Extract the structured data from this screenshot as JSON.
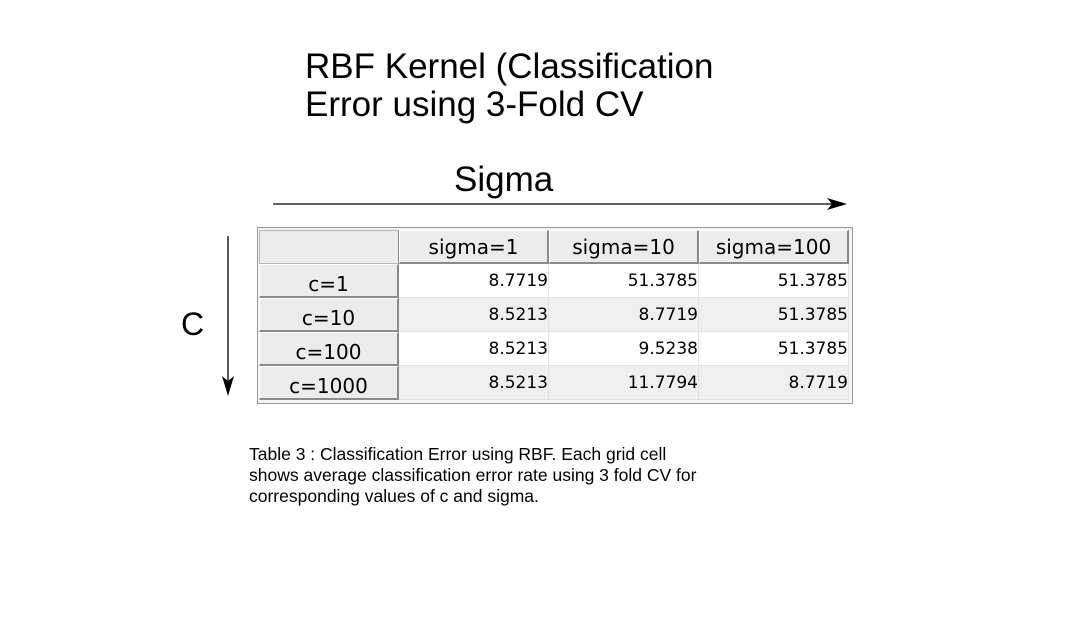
{
  "title": {
    "line1": "RBF Kernel (Classification",
    "line2": "Error using 3-Fold CV"
  },
  "axes": {
    "horizontal_label": "Sigma",
    "vertical_label": "C"
  },
  "table": {
    "corner": "",
    "columns": [
      "sigma=1",
      "sigma=10",
      "sigma=100"
    ],
    "rows": [
      {
        "label": "c=1",
        "values": [
          "8.7719",
          "51.3785",
          "51.3785"
        ]
      },
      {
        "label": "c=10",
        "values": [
          "8.5213",
          "8.7719",
          "51.3785"
        ]
      },
      {
        "label": "c=100",
        "values": [
          "8.5213",
          "9.5238",
          "51.3785"
        ]
      },
      {
        "label": "c=1000",
        "values": [
          "8.5213",
          "11.7794",
          "8.7719"
        ]
      }
    ]
  },
  "caption": {
    "line1": "Table 3 : Classification Error using RBF. Each grid cell",
    "line2": "shows average classification error rate using 3 fold CV for",
    "line3": "corresponding values of c and sigma."
  }
}
